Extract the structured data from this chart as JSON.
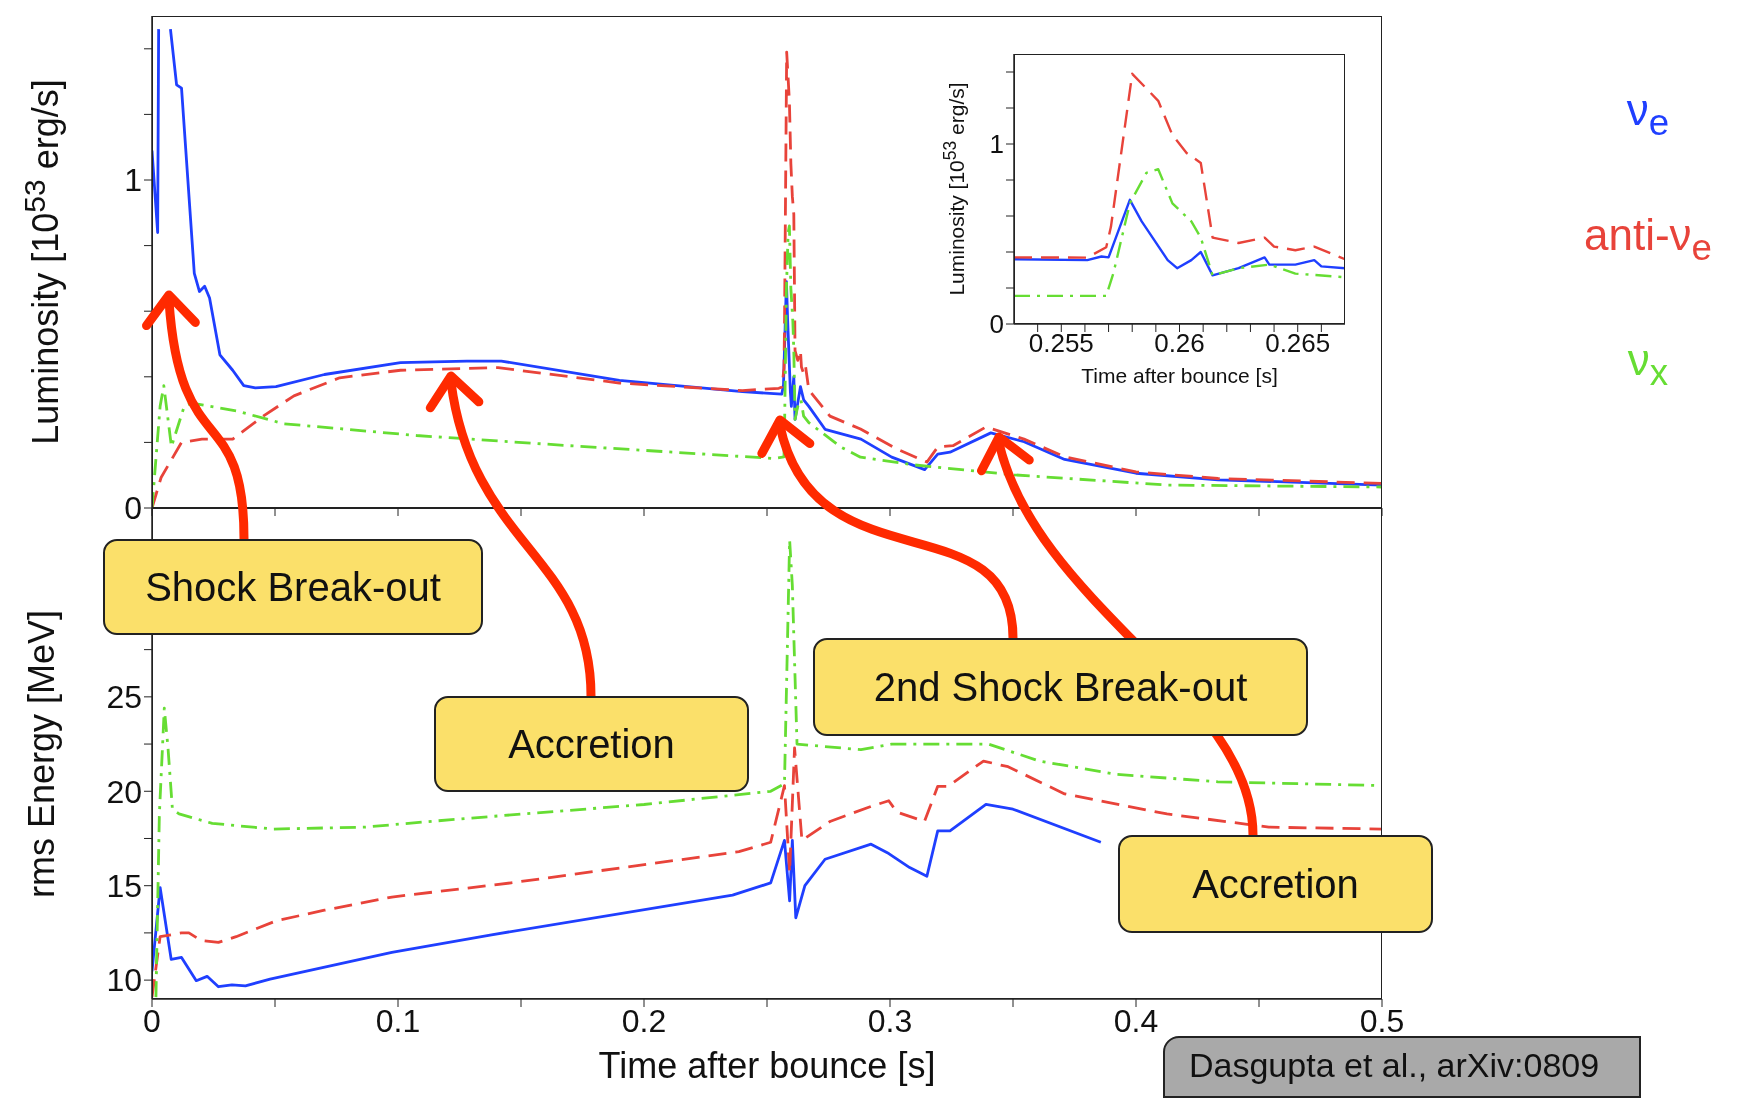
{
  "chart_data": [
    {
      "type": "line",
      "ylabel": "Luminosity [10$^{53}$ erg/s]",
      "xlim": [
        0,
        0.5
      ],
      "ylim": [
        0,
        1.5
      ],
      "xticks": [
        0,
        {
          "value": 0.05,
          "label": null
        },
        0.1,
        {
          "value": 0.15,
          "label": null
        },
        0.2,
        {
          "value": 0.25,
          "label": null
        },
        0.3,
        {
          "value": 0.35,
          "label": null
        },
        0.4,
        {
          "value": 0.45,
          "label": null
        },
        0.5
      ],
      "yticks": [
        0,
        {
          "value": 0.2,
          "label": null
        },
        {
          "value": 0.4,
          "label": null
        },
        {
          "value": 0.6,
          "label": null
        },
        {
          "value": 0.8,
          "label": null
        },
        1,
        {
          "value": 1.2,
          "label": null
        },
        {
          "value": 1.4,
          "label": null
        }
      ],
      "tick_labels": "y",
      "legend": "right",
      "series": [
        {
          "name": "ν$_{e}$",
          "color": "#1f3fff",
          "line_style": "solid",
          "x": [
            0,
            0.0023,
            0.0027,
            0.005,
            0.0075,
            0.01,
            0.012,
            0.0172,
            0.0193,
            0.0214,
            0.0234,
            0.0276,
            0.0328,
            0.0373,
            0.042,
            0.0504,
            0.0701,
            0.101,
            0.128,
            0.142,
            0.19,
            0.24,
            0.256,
            0.2567,
            0.2579,
            0.2584,
            0.2595,
            0.2599,
            0.2609,
            0.2614,
            0.2636,
            0.2649,
            0.267,
            0.2736,
            0.2882,
            0.3007,
            0.3141,
            0.3194,
            0.3244,
            0.341,
            0.3545,
            0.371,
            0.4,
            0.4333,
            0.5
          ],
          "values": [
            1.09,
            0.84,
            1.46,
            null,
            1.46,
            1.29,
            1.28,
            0.715,
            0.66,
            0.676,
            0.64,
            0.467,
            0.42,
            0.373,
            0.366,
            0.37,
            0.407,
            0.443,
            0.448,
            0.448,
            0.389,
            0.355,
            0.347,
            0.375,
            0.69,
            0.57,
            0.355,
            0.31,
            0.4,
            0.27,
            0.37,
            0.33,
            0.31,
            0.24,
            0.21,
            0.155,
            0.117,
            0.164,
            0.17,
            0.229,
            0.202,
            0.148,
            0.106,
            0.086,
            0.07
          ]
        },
        {
          "name": "anti-ν$_{e}$",
          "color": "#e8433a",
          "line_style": "dashed",
          "x": [
            0,
            0.0037,
            0.012,
            0.0203,
            0.0328,
            0.0452,
            0.0577,
            0.0763,
            0.101,
            0.1407,
            0.19,
            0.24,
            0.2548,
            0.2561,
            0.2569,
            0.2571,
            0.258,
            0.2591,
            0.2597,
            0.2603,
            0.2609,
            0.2614,
            0.2625,
            0.2636,
            0.264,
            0.2649,
            0.2657,
            0.267,
            0.2756,
            0.288,
            0.3028,
            0.315,
            0.3194,
            0.3256,
            0.339,
            0.3545,
            0.371,
            0.4,
            0.4333,
            0.5
          ],
          "values": [
            0,
            0.093,
            0.2,
            0.21,
            0.21,
            0.28,
            0.342,
            0.397,
            0.42,
            0.428,
            0.381,
            0.358,
            0.365,
            0.369,
            0.426,
            0.54,
            1.39,
            1.24,
            1.05,
            0.95,
            0.895,
            0.48,
            0.45,
            0.48,
            0.43,
            0.41,
            0.43,
            0.36,
            0.28,
            0.241,
            0.18,
            0.14,
            0.186,
            0.19,
            0.247,
            0.21,
            0.156,
            0.11,
            0.09,
            0.075
          ]
        },
        {
          "name": "ν$_{x}$",
          "color": "#66dd33",
          "line_style": "dashdot",
          "x": [
            0,
            0.0033,
            0.0048,
            0.0079,
            0.0131,
            0.0162,
            0.0349,
            0.0535,
            0.1075,
            0.1697,
            0.2527,
            0.2569,
            0.2572,
            0.2579,
            0.2586,
            0.2591,
            0.2597,
            0.2605,
            0.2609,
            0.2614,
            0.2625,
            0.2638,
            0.2649,
            0.267,
            0.28,
            0.288,
            0.309,
            0.3504,
            0.4126,
            0.5
          ],
          "values": [
            0,
            0.31,
            0.373,
            0.187,
            0.31,
            0.32,
            0.295,
            0.257,
            0.221,
            0.19,
            0.151,
            0.156,
            0.28,
            0.67,
            0.84,
            0.86,
            0.67,
            0.57,
            0.48,
            0.27,
            0.31,
            0.33,
            0.28,
            0.26,
            0.186,
            0.155,
            0.132,
            0.101,
            0.07,
            0.064
          ]
        }
      ],
      "annotations": [
        "Shock Break-out",
        "Accretion",
        "2nd Shock Break-out",
        "Accretion",
        "Dasgupta et al., arXiv:0809"
      ]
    },
    {
      "type": "line",
      "xlabel": "Time after bounce [s]",
      "ylabel": "rms Energy [MeV]",
      "xlim": [
        0,
        0.5
      ],
      "ylim": [
        9,
        35
      ],
      "xticks": [
        0,
        {
          "value": 0.05,
          "label": null
        },
        0.1,
        {
          "value": 0.15,
          "label": null
        },
        0.2,
        {
          "value": 0.25,
          "label": null
        },
        0.3,
        {
          "value": 0.35,
          "label": null
        },
        0.4,
        {
          "value": 0.45,
          "label": null
        },
        0.5
      ],
      "yticks": [
        10,
        {
          "value": 12.5,
          "label": null
        },
        15,
        {
          "value": 17.5,
          "label": null
        },
        20,
        {
          "value": 22.5,
          "label": null
        },
        25,
        {
          "value": 27.5,
          "label": null
        },
        {
          "value": 30,
          "label": null
        },
        {
          "value": 32.5,
          "label": null
        }
      ],
      "series": [
        {
          "color": "#1f3fff",
          "line_style": "solid",
          "x": [
            0,
            0.0033,
            0.0078,
            0.012,
            0.018,
            0.0224,
            0.027,
            0.0325,
            0.038,
            0.048,
            0.0975,
            0.138,
            0.236,
            0.2515,
            0.2571,
            0.2592,
            0.2603,
            0.2617,
            0.2654,
            0.2736,
            0.2923,
            0.2995,
            0.308,
            0.315,
            0.3194,
            0.3244,
            0.339,
            0.35,
            0.3857
          ],
          "values": [
            10.47,
            14.9,
            11.1,
            11.2,
            9.97,
            10.2,
            9.65,
            9.75,
            9.7,
            10.05,
            11.47,
            12.4,
            14.5,
            15.15,
            17.4,
            14.2,
            17.4,
            13.3,
            15.0,
            16.4,
            17.2,
            16.7,
            15.96,
            15.5,
            17.9,
            17.9,
            19.3,
            19.05,
            17.3
          ]
        },
        {
          "color": "#e8433a",
          "line_style": "dashed",
          "x": [
            0,
            0.0033,
            0.012,
            0.015,
            0.02,
            0.027,
            0.0342,
            0.0507,
            0.0701,
            0.0975,
            0.146,
            0.2386,
            0.2515,
            0.2571,
            0.2592,
            0.2612,
            0.2642,
            0.2756,
            0.2923,
            0.2995,
            0.3028,
            0.314,
            0.3194,
            0.3236,
            0.338,
            0.348,
            0.371,
            0.4126,
            0.454,
            0.5
          ],
          "values": [
            9.1,
            12.3,
            12.5,
            12.5,
            12.1,
            12.0,
            12.3,
            13.15,
            13.7,
            14.4,
            15.15,
            16.8,
            17.3,
            20.3,
            15.7,
            22.3,
            17.4,
            18.4,
            19.2,
            19.5,
            18.9,
            18.4,
            20.26,
            20.26,
            21.6,
            21.3,
            19.86,
            18.8,
            18.1,
            18.0
          ]
        },
        {
          "color": "#66dd33",
          "line_style": "dashdot",
          "x": [
            0.0016,
            0.003,
            0.005,
            0.0065,
            0.0083,
            0.011,
            0.0245,
            0.0493,
            0.0865,
            0.1218,
            0.2,
            0.2515,
            0.2571,
            0.2592,
            0.2603,
            0.2622,
            0.2882,
            0.3007,
            0.34,
            0.3608,
            0.3919,
            0.4333,
            0.5
          ],
          "values": [
            9.1,
            18.8,
            24.4,
            22.3,
            19.05,
            18.8,
            18.3,
            18.0,
            18.1,
            18.5,
            19.3,
            20.0,
            20.4,
            33.3,
            30.9,
            22.5,
            22.2,
            22.5,
            22.5,
            21.6,
            20.9,
            20.5,
            20.3
          ]
        }
      ]
    },
    {
      "type": "line",
      "xlabel": "Time after bounce [s]",
      "ylabel": "Luminosity [10$^{53}$ erg/s]",
      "xlim": [
        0.253,
        0.267
      ],
      "ylim": [
        0,
        1.5
      ],
      "xticks": [
        {
          "value": 0.254,
          "label": null
        },
        0.255,
        {
          "value": 0.256,
          "label": null
        },
        {
          "value": 0.257,
          "label": null
        },
        {
          "value": 0.258,
          "label": null
        },
        {
          "value": 0.259,
          "label": null
        },
        0.26,
        {
          "value": 0.261,
          "label": null
        },
        {
          "value": 0.262,
          "label": null
        },
        {
          "value": 0.263,
          "label": null
        },
        {
          "value": 0.264,
          "label": null
        },
        0.265,
        {
          "value": 0.266,
          "label": null
        }
      ],
      "yticks": [
        0,
        {
          "value": 0.2,
          "label": null
        },
        {
          "value": 0.4,
          "label": null
        },
        {
          "value": 0.6,
          "label": null
        },
        {
          "value": 0.8,
          "label": null
        },
        1,
        {
          "value": 1.2,
          "label": null
        },
        {
          "value": 1.4,
          "label": null
        }
      ],
      "series": [
        {
          "color": "#1f3fff",
          "line_style": "solid",
          "x": [
            0.253,
            0.2561,
            0.2567,
            0.257,
            0.2579,
            0.2584,
            0.2595,
            0.2599,
            0.2605,
            0.2609,
            0.2614,
            0.2625,
            0.2636,
            0.2638,
            0.2649,
            0.2657,
            0.266,
            0.267
          ],
          "values": [
            0.36,
            0.355,
            0.375,
            0.37,
            0.69,
            0.57,
            0.355,
            0.31,
            0.355,
            0.4,
            0.27,
            0.31,
            0.37,
            0.33,
            0.33,
            0.355,
            0.32,
            0.31
          ]
        },
        {
          "color": "#e8433a",
          "line_style": "dashed",
          "x": [
            0.253,
            0.2561,
            0.2569,
            0.2571,
            0.258,
            0.2591,
            0.2597,
            0.2603,
            0.2609,
            0.2614,
            0.2625,
            0.2636,
            0.264,
            0.2649,
            0.2657,
            0.267
          ],
          "values": [
            0.37,
            0.369,
            0.426,
            0.54,
            1.39,
            1.24,
            1.05,
            0.95,
            0.895,
            0.48,
            0.45,
            0.48,
            0.43,
            0.41,
            0.43,
            0.36
          ]
        },
        {
          "color": "#66dd33",
          "line_style": "dashdot",
          "x": [
            0.253,
            0.2569,
            0.2572,
            0.2579,
            0.2586,
            0.2591,
            0.2597,
            0.2605,
            0.2609,
            0.2614,
            0.2625,
            0.2638,
            0.2649,
            0.267
          ],
          "values": [
            0.156,
            0.156,
            0.28,
            0.67,
            0.84,
            0.86,
            0.67,
            0.57,
            0.48,
            0.27,
            0.31,
            0.33,
            0.28,
            0.26
          ]
        }
      ]
    }
  ]
}
